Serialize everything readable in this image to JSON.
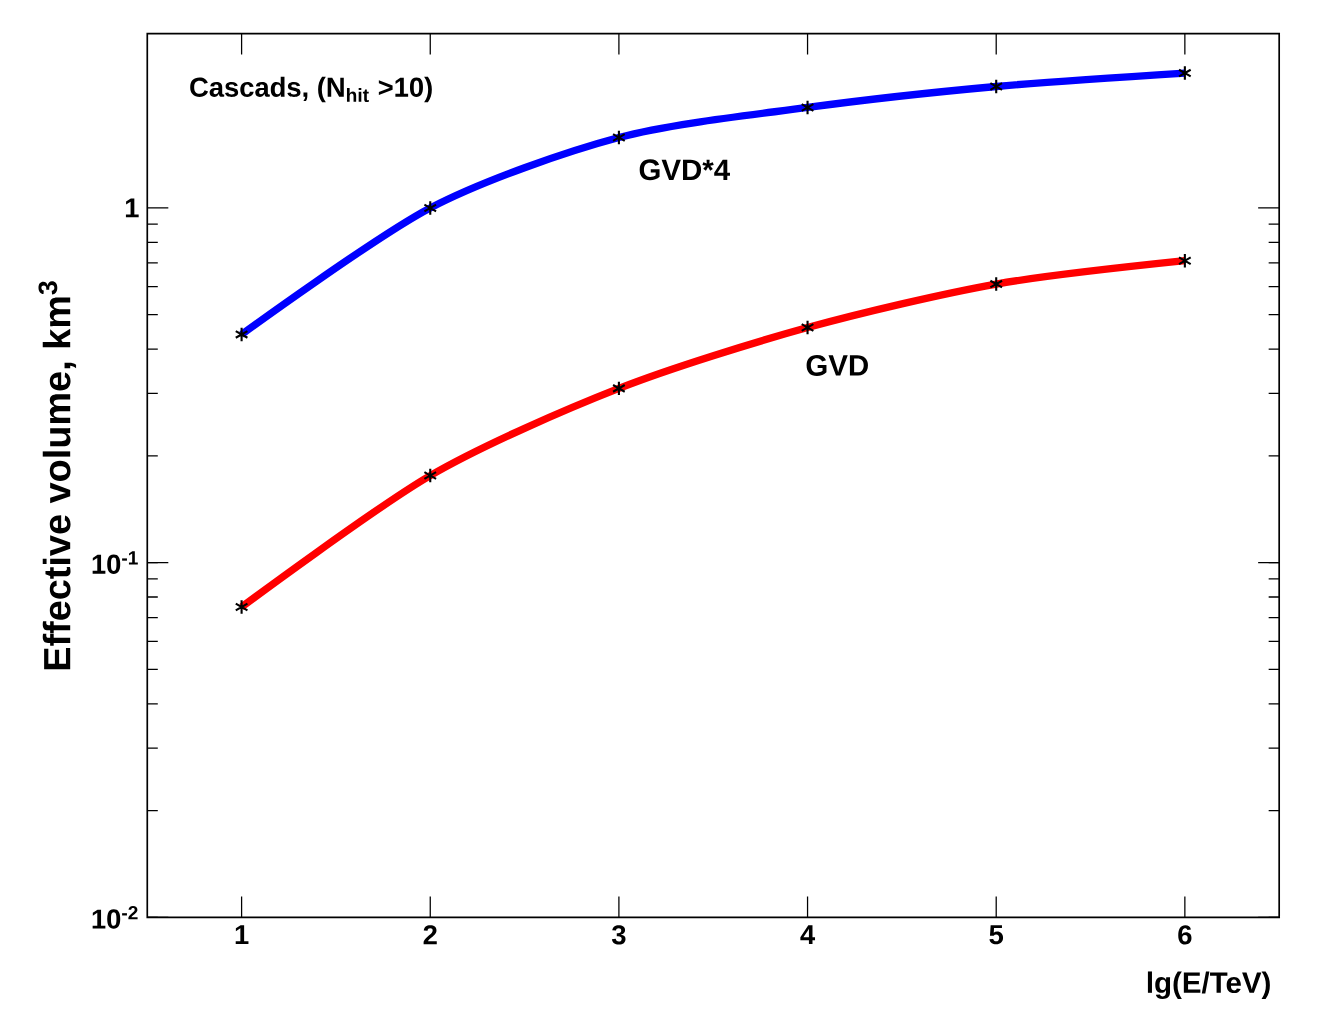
{
  "chart_data": {
    "type": "line",
    "xlabel": "lg(E/TeV)",
    "ylabel": "Effective volume, km$^{3}$",
    "annotations": [
      "Cascads, (N$_{hit}$ >10)"
    ],
    "x": [
      1,
      2,
      3,
      4,
      5,
      6
    ],
    "series": [
      {
        "name": "GVD*4",
        "color": "#0000ff",
        "values": [
          0.44,
          1.0,
          1.58,
          1.92,
          2.2,
          2.4
        ]
      },
      {
        "name": "GVD",
        "color": "#ff0000",
        "values": [
          0.075,
          0.176,
          0.31,
          0.46,
          0.61,
          0.71
        ]
      }
    ],
    "log": "y",
    "xlim": [
      0.5,
      6.5
    ],
    "ylim": [
      0.01,
      3.1
    ],
    "xticks": [
      1,
      2,
      3,
      4,
      5,
      6
    ],
    "yticks": [
      {
        "value": 0.01,
        "label": "10$^{-2}$"
      },
      {
        "value": 0.1,
        "label": "10$^{-1}$"
      },
      1
    ],
    "marker": "cross",
    "line_style": "solid",
    "grid": false
  }
}
